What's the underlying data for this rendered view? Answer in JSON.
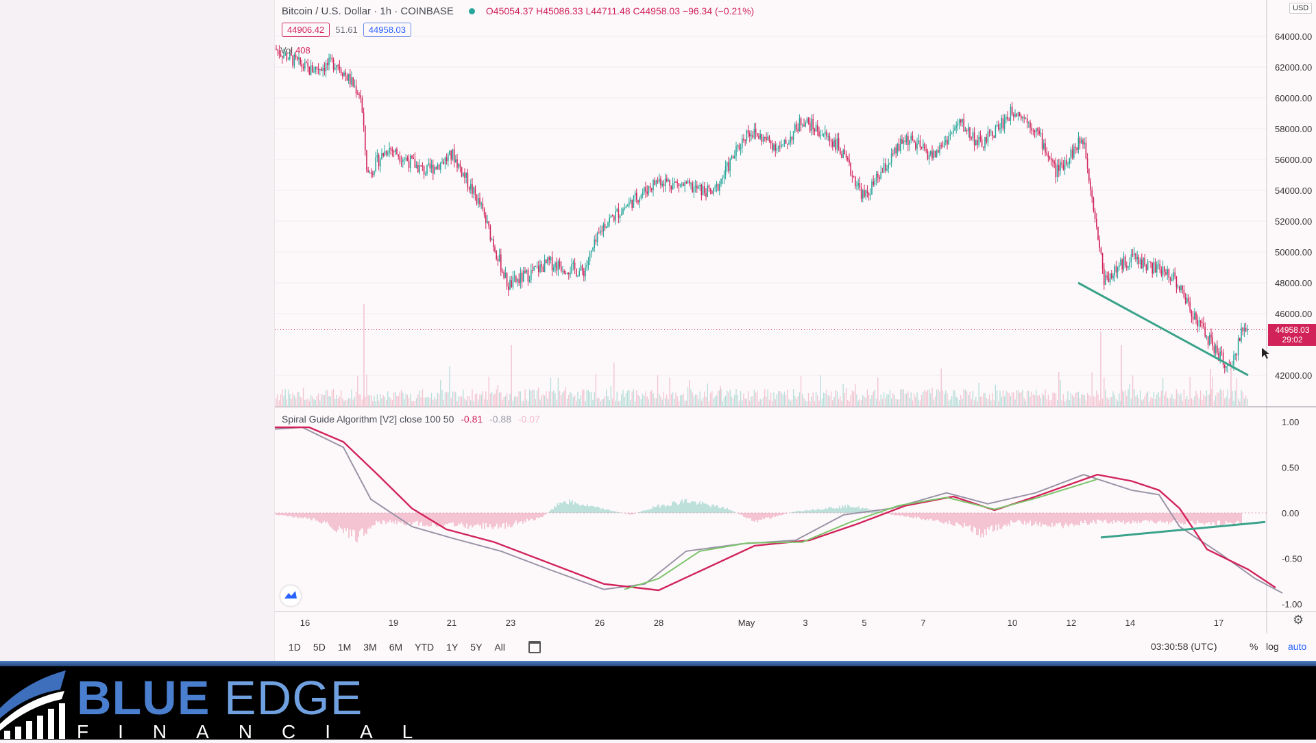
{
  "header": {
    "symbol": "Bitcoin / U.S. Dollar · 1h · COINBASE",
    "ohlc": "O45054.37 H45086.33 L44711.48 C44958.03 −96.34 (−0.21%)",
    "bid": "44906.42",
    "spread": "51.61",
    "ask": "44958.03"
  },
  "volume": {
    "label": "Vol",
    "value": "408"
  },
  "indicator": {
    "label": "Spiral Guide Algorithm [V2] close 100 50",
    "v1": "-0.81",
    "v2": "-0.88",
    "v3": "-0.07"
  },
  "price_axis": {
    "currency": "USD",
    "ticks": [
      "64000.00",
      "62000.00",
      "60000.00",
      "58000.00",
      "56000.00",
      "54000.00",
      "52000.00",
      "50000.00",
      "48000.00",
      "46000.00",
      "42000.00"
    ],
    "last_price": "44958.03",
    "countdown": "29:02"
  },
  "indicator_axis": {
    "ticks": [
      "1.00",
      "0.50",
      "0.00",
      "-0.50",
      "-1.00"
    ]
  },
  "time_axis": {
    "ticks": [
      "16",
      "19",
      "21",
      "23",
      "26",
      "28",
      "May",
      "3",
      "5",
      "7",
      "10",
      "12",
      "14",
      "17"
    ]
  },
  "toolbar": {
    "ranges": [
      "1D",
      "5D",
      "1M",
      "3M",
      "6M",
      "YTD",
      "1Y",
      "5Y",
      "All"
    ],
    "clock": "03:30:58 (UTC)",
    "percent": "%",
    "log": "log",
    "auto": "auto"
  },
  "colors": {
    "bull": "#26a69a",
    "bear": "#d1235a",
    "trendline": "#3aa38a",
    "fast": "#d1235a",
    "signal": "#9a93a6",
    "brand": "#4a7fd0"
  },
  "brand": {
    "name_bold": "BLUE",
    "name_light": "EDGE",
    "sub": "FINANCIAL"
  },
  "icons": {
    "calendar": "calendar-icon",
    "gear": "gear-icon",
    "logo": "tradingview-logo-icon"
  }
}
